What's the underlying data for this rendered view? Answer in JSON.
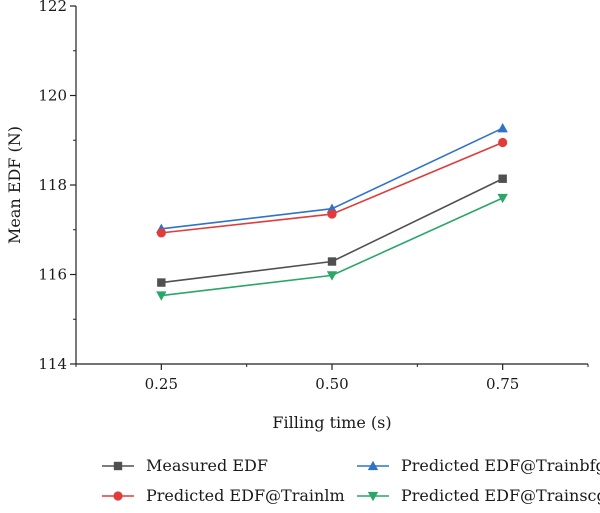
{
  "chart_data": {
    "type": "line",
    "x": [
      0.25,
      0.5,
      0.75
    ],
    "x_tick_labels": [
      "0.25",
      "0.50",
      "0.75"
    ],
    "xlabel": "Filling time (s)",
    "ylabel": "Mean EDF (N)",
    "ylim": [
      114,
      122
    ],
    "y_ticks": [
      114,
      116,
      118,
      120,
      122
    ],
    "y_tick_labels": [
      "114",
      "116",
      "118",
      "120",
      "122"
    ],
    "legend_position": "bottom",
    "series": [
      {
        "name": "Measured EDF",
        "values": [
          115.82,
          116.29,
          118.14
        ],
        "color": "#505050",
        "marker": "square"
      },
      {
        "name": "Predicted EDF@Trainbfg",
        "values": [
          117.02,
          117.47,
          119.27
        ],
        "color": "#2f73c8",
        "marker": "triangle-up"
      },
      {
        "name": "Predicted EDF@Trainlm",
        "values": [
          116.93,
          117.35,
          118.95
        ],
        "color": "#e23b3b",
        "marker": "circle"
      },
      {
        "name": "Predicted EDF@Trainscg",
        "values": [
          115.53,
          115.98,
          117.71
        ],
        "color": "#2aa667",
        "marker": "triangle-down"
      }
    ]
  }
}
